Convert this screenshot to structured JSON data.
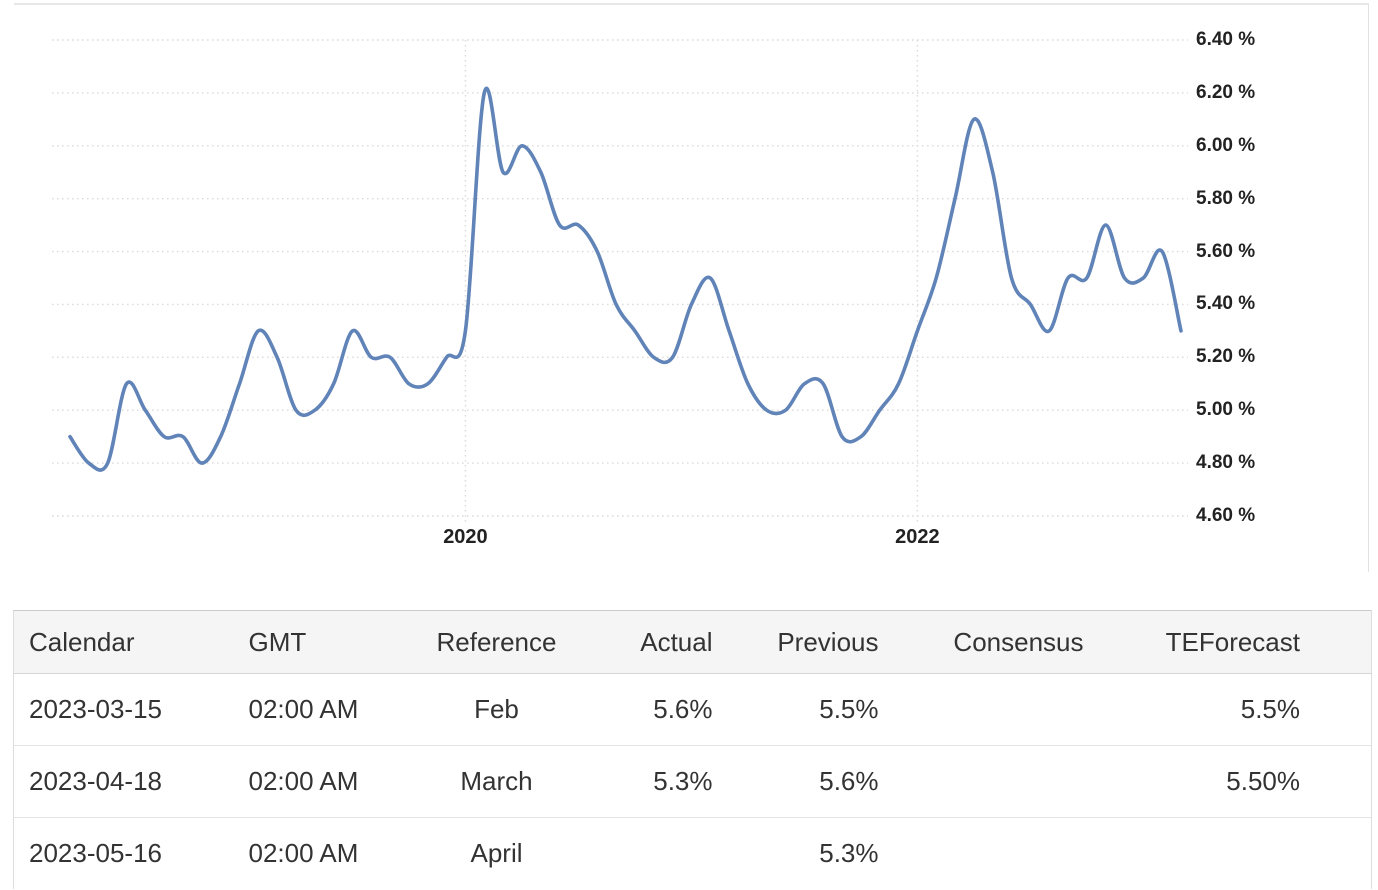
{
  "chart": {
    "line_color": "#6083b8",
    "grid_color": "#dcdcdc",
    "axis_text_color": "#222222",
    "y_tick_labels": [
      "6.40 %",
      "6.20 %",
      "6.00 %",
      "5.80 %",
      "5.60 %",
      "5.40 %",
      "5.20 %",
      "5.00 %",
      "4.80 %",
      "4.60 %"
    ],
    "x_tick_labels": [
      "2020",
      "2022"
    ]
  },
  "chart_data": {
    "type": "line",
    "title": "",
    "xlabel": "",
    "ylabel": "",
    "unit": "%",
    "grid": "dotted",
    "legend": "none",
    "ylim": [
      4.6,
      6.4
    ],
    "y_tick_step": 0.2,
    "x_gridlines_at": [
      "2020-01",
      "2022-01"
    ],
    "x": [
      "2018-04",
      "2018-05",
      "2018-06",
      "2018-07",
      "2018-08",
      "2018-09",
      "2018-10",
      "2018-11",
      "2018-12",
      "2019-01",
      "2019-02",
      "2019-03",
      "2019-04",
      "2019-05",
      "2019-06",
      "2019-07",
      "2019-08",
      "2019-09",
      "2019-10",
      "2019-11",
      "2019-12",
      "2020-01",
      "2020-02",
      "2020-03",
      "2020-04",
      "2020-05",
      "2020-06",
      "2020-07",
      "2020-08",
      "2020-09",
      "2020-10",
      "2020-11",
      "2020-12",
      "2021-01",
      "2021-02",
      "2021-03",
      "2021-04",
      "2021-05",
      "2021-06",
      "2021-07",
      "2021-08",
      "2021-09",
      "2021-10",
      "2021-11",
      "2021-12",
      "2022-01",
      "2022-02",
      "2022-03",
      "2022-04",
      "2022-05",
      "2022-06",
      "2022-07",
      "2022-08",
      "2022-09",
      "2022-10",
      "2022-11",
      "2022-12",
      "2023-01",
      "2023-02",
      "2023-03"
    ],
    "values": [
      4.9,
      4.8,
      4.8,
      5.1,
      5.0,
      4.9,
      4.9,
      4.8,
      4.9,
      5.1,
      5.3,
      5.2,
      5.0,
      5.0,
      5.1,
      5.3,
      5.2,
      5.2,
      5.1,
      5.1,
      5.2,
      5.3,
      6.2,
      5.9,
      6.0,
      5.9,
      5.7,
      5.7,
      5.6,
      5.4,
      5.3,
      5.2,
      5.2,
      5.4,
      5.5,
      5.3,
      5.1,
      5.0,
      5.0,
      5.1,
      5.1,
      4.9,
      4.9,
      5.0,
      5.1,
      5.3,
      5.5,
      5.8,
      6.1,
      5.9,
      5.5,
      5.4,
      5.3,
      5.5,
      5.5,
      5.7,
      5.5,
      5.5,
      5.6,
      5.3
    ]
  },
  "table": {
    "columns": [
      {
        "label": "Calendar",
        "align": "left"
      },
      {
        "label": "GMT",
        "align": "left"
      },
      {
        "label": "Reference",
        "align": "center"
      },
      {
        "label": "Actual",
        "align": "right"
      },
      {
        "label": "Previous",
        "align": "right"
      },
      {
        "label": "Consensus",
        "align": "right"
      },
      {
        "label": "TEForecast",
        "align": "right-wide"
      }
    ],
    "rows": [
      [
        "2023-03-15",
        "02:00 AM",
        "Feb",
        "5.6%",
        "5.5%",
        "",
        "5.5%"
      ],
      [
        "2023-04-18",
        "02:00 AM",
        "March",
        "5.3%",
        "5.6%",
        "",
        "5.50%"
      ],
      [
        "2023-05-16",
        "02:00 AM",
        "April",
        "",
        "5.3%",
        "",
        ""
      ]
    ]
  }
}
